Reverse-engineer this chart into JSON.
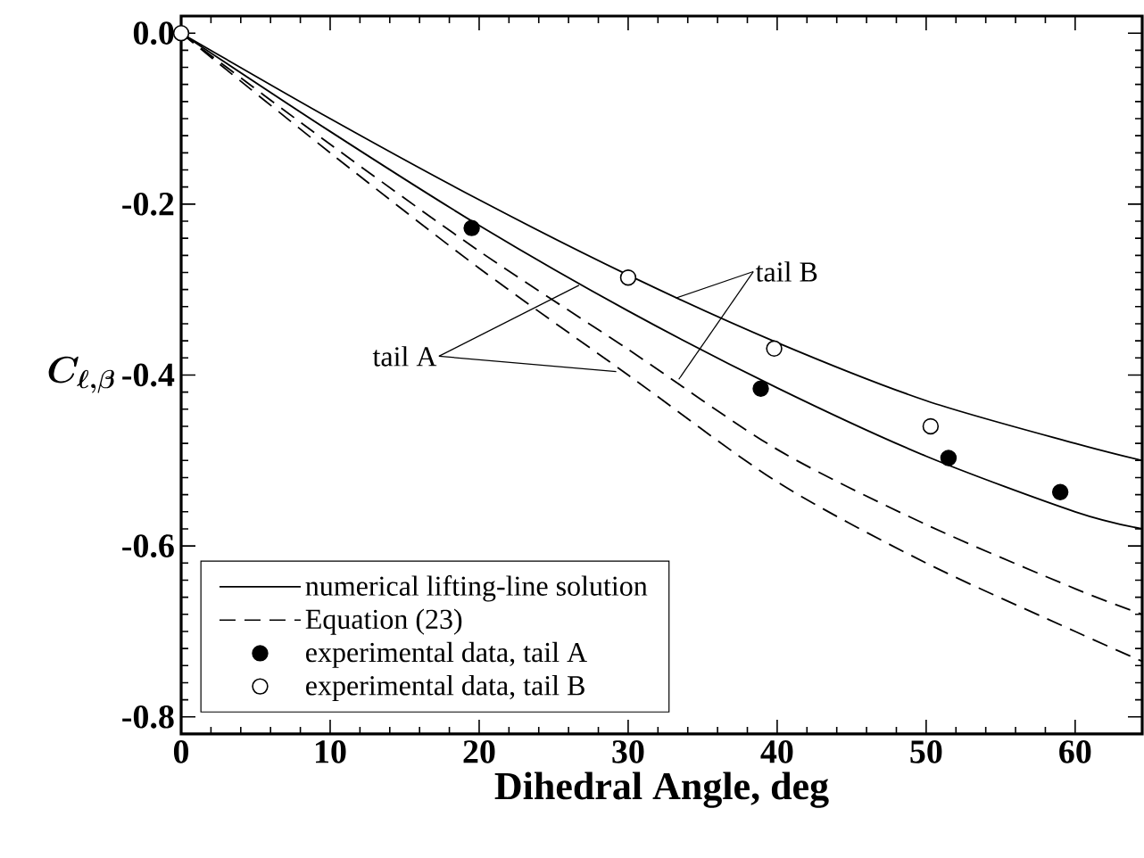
{
  "chart_data": {
    "type": "line",
    "xlabel": "Dihedral Angle, deg",
    "ylabel": "C_{\\ell,\\boldsymbol{\\beta}}",
    "xlim": [
      0,
      64.5
    ],
    "ylim": [
      -0.82,
      0.02
    ],
    "xticks": [
      0,
      10,
      20,
      30,
      40,
      50,
      60
    ],
    "yticks": [
      {
        "value": 0,
        "label": "0.0"
      },
      {
        "value": -0.2,
        "label": "-0.2"
      },
      {
        "value": -0.4,
        "label": "-0.4"
      },
      {
        "value": -0.6,
        "label": "-0.6"
      },
      {
        "value": -0.8,
        "label": "-0.8"
      }
    ],
    "grid": false,
    "legend": "bottom left",
    "series": [
      {
        "name": "numerical lifting-line solution",
        "color": "#000000",
        "line_style": "solid",
        "marker": "none",
        "x": [
          0,
          10,
          20,
          30,
          40,
          50,
          60,
          64.5
        ],
        "values": [
          0,
          -0.115,
          -0.225,
          -0.325,
          -0.415,
          -0.495,
          -0.56,
          -0.58
        ]
      },
      {
        "color": "#000000",
        "line_style": "solid",
        "marker": "none",
        "x": [
          0,
          10,
          20,
          30,
          40,
          50,
          60,
          64.5
        ],
        "values": [
          0,
          -0.1,
          -0.195,
          -0.283,
          -0.362,
          -0.43,
          -0.48,
          -0.5
        ]
      },
      {
        "name": "Equation (23)",
        "color": "#000000",
        "line_style": "dashed",
        "marker": "none",
        "x": [
          0,
          10,
          20,
          30,
          40,
          50,
          60,
          64.5
        ],
        "values": [
          0,
          -0.13,
          -0.255,
          -0.37,
          -0.487,
          -0.575,
          -0.65,
          -0.68
        ]
      },
      {
        "color": "#000000",
        "line_style": "dashed",
        "marker": "none",
        "x": [
          0,
          10,
          20,
          30,
          40,
          50,
          60,
          64.5
        ],
        "values": [
          0,
          -0.14,
          -0.275,
          -0.4,
          -0.525,
          -0.62,
          -0.7,
          -0.735
        ]
      },
      {
        "name": "experimental data, tail A",
        "type": "scatter",
        "color": "#000000",
        "marker": "circle",
        "x": [
          19.5,
          38.9,
          51.5,
          59.0
        ],
        "values": [
          -0.228,
          -0.416,
          -0.497,
          -0.537
        ]
      },
      {
        "name": "experimental data, tail B",
        "type": "scatter",
        "color": "#ffffff",
        "marker": "circle",
        "x": [
          0,
          30.0,
          39.8,
          50.3
        ],
        "values": [
          0,
          -0.286,
          -0.369,
          -0.46
        ]
      }
    ],
    "annotations": [
      {
        "text": "tail A",
        "x": 26.7,
        "y": -0.295
      },
      {
        "text": "tail B",
        "x": 33.2,
        "y": -0.31
      }
    ]
  }
}
